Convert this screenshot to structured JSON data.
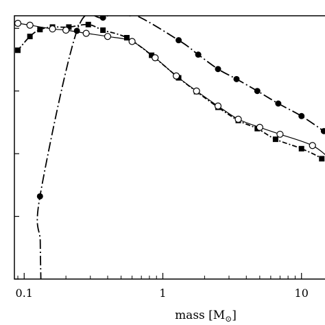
{
  "chart_data": {
    "type": "line",
    "title": "",
    "xlabel": "mass [M",
    "xlabel_sub": "⊙",
    "xlabel_close": "]",
    "ylabel": "",
    "x_scale": "log",
    "xlim": [
      0.085,
      16
    ],
    "ylim": [
      0,
      4.2
    ],
    "y_ticks": [
      0,
      1,
      2,
      3,
      4
    ],
    "x_ticks": [
      {
        "value": 0.1,
        "label": "0.1"
      },
      {
        "value": 1,
        "label": "1"
      },
      {
        "value": 10,
        "label": "10"
      }
    ],
    "grid": false,
    "legend": "none",
    "series": [
      {
        "line": "dash-dot",
        "marker": "filled-circle",
        "points": [
          [
            0.13,
            1.32
          ],
          [
            0.24,
            3.96
          ],
          [
            0.37,
            4.17
          ],
          [
            0.58,
            4.24
          ],
          [
            1.3,
            3.81
          ],
          [
            1.8,
            3.58
          ],
          [
            2.5,
            3.35
          ],
          [
            3.4,
            3.19
          ],
          [
            4.8,
            3.0
          ],
          [
            6.8,
            2.8
          ],
          [
            10,
            2.6
          ],
          [
            14.5,
            2.36
          ]
        ]
      },
      {
        "line": "dense-dash-dot",
        "marker": "filled-square",
        "points": [
          [
            0.09,
            3.65
          ],
          [
            0.11,
            3.87
          ],
          [
            0.13,
            3.98
          ],
          [
            0.16,
            4.02
          ],
          [
            0.21,
            4.02
          ],
          [
            0.29,
            4.06
          ],
          [
            0.37,
            3.97
          ],
          [
            0.55,
            3.85
          ],
          [
            0.83,
            3.57
          ],
          [
            1.3,
            3.21
          ],
          [
            1.75,
            2.99
          ],
          [
            2.5,
            2.74
          ],
          [
            3.5,
            2.53
          ],
          [
            4.8,
            2.4
          ],
          [
            6.5,
            2.23
          ],
          [
            10,
            2.08
          ],
          [
            14,
            1.92
          ],
          [
            16,
            1.77
          ]
        ]
      },
      {
        "line": "solid",
        "marker": "open-circle",
        "points": [
          [
            0.09,
            4.08
          ],
          [
            0.11,
            4.05
          ],
          [
            0.16,
            3.99
          ],
          [
            0.2,
            3.97
          ],
          [
            0.28,
            3.92
          ],
          [
            0.4,
            3.87
          ],
          [
            0.6,
            3.79
          ],
          [
            0.88,
            3.53
          ],
          [
            1.25,
            3.24
          ],
          [
            1.75,
            3.0
          ],
          [
            2.5,
            2.76
          ],
          [
            3.5,
            2.55
          ],
          [
            5,
            2.42
          ],
          [
            7,
            2.31
          ],
          [
            12,
            2.13
          ],
          [
            16,
            1.92
          ]
        ]
      }
    ]
  }
}
